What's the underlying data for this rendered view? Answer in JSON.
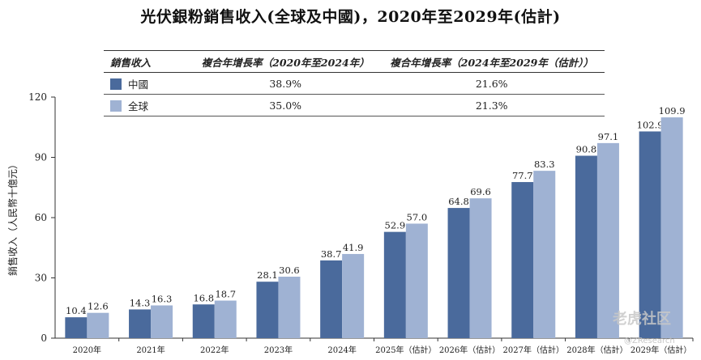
{
  "title": "光伏銀粉銷售收入(全球及中國)，2020年至2029年(估計)",
  "cagr_table": {
    "header_label": "銷售收入",
    "col1": "複合年增長率（2020年至2024年）",
    "col2": "複合年增長率（2024年至2029年（估計））",
    "rows": [
      {
        "label": "中國",
        "cagr1": "38.9%",
        "cagr2": "21.6%",
        "color": "#4a6a9c"
      },
      {
        "label": "全球",
        "cagr1": "35.0%",
        "cagr2": "21.3%",
        "color": "#9fb2d3"
      }
    ]
  },
  "watermark": {
    "main": "老虎社区",
    "sub": "@ZResearch"
  },
  "chart_data": {
    "type": "bar",
    "ylabel": "銷售收入（人民幣十億元）",
    "ylim": [
      0,
      120
    ],
    "yticks": [
      0,
      30,
      60,
      90,
      120
    ],
    "categories": [
      "2020年",
      "2021年",
      "2022年",
      "2023年",
      "2024年",
      "2025年（估計）",
      "2026年（估計）",
      "2027年（估計）",
      "2028年（估計）",
      "2029年（估計）"
    ],
    "series": [
      {
        "name": "中國",
        "color": "#4a6a9c",
        "values": [
          10.4,
          14.3,
          16.8,
          28.1,
          38.7,
          52.9,
          64.8,
          77.7,
          90.8,
          102.9
        ],
        "labels": [
          "10.4",
          "14.3",
          "16.8",
          "28.1",
          "38.7",
          "52.9",
          "64.8",
          "77.7",
          "90.8",
          "102.9"
        ]
      },
      {
        "name": "全球",
        "color": "#9fb2d3",
        "values": [
          12.6,
          16.3,
          18.7,
          30.6,
          41.9,
          57.0,
          69.6,
          83.3,
          97.1,
          109.9
        ],
        "labels": [
          "12.6",
          "16.3",
          "18.7",
          "30.6",
          "41.9",
          "57.0",
          "69.6",
          "83.3",
          "97.1",
          "109.9"
        ]
      }
    ]
  }
}
